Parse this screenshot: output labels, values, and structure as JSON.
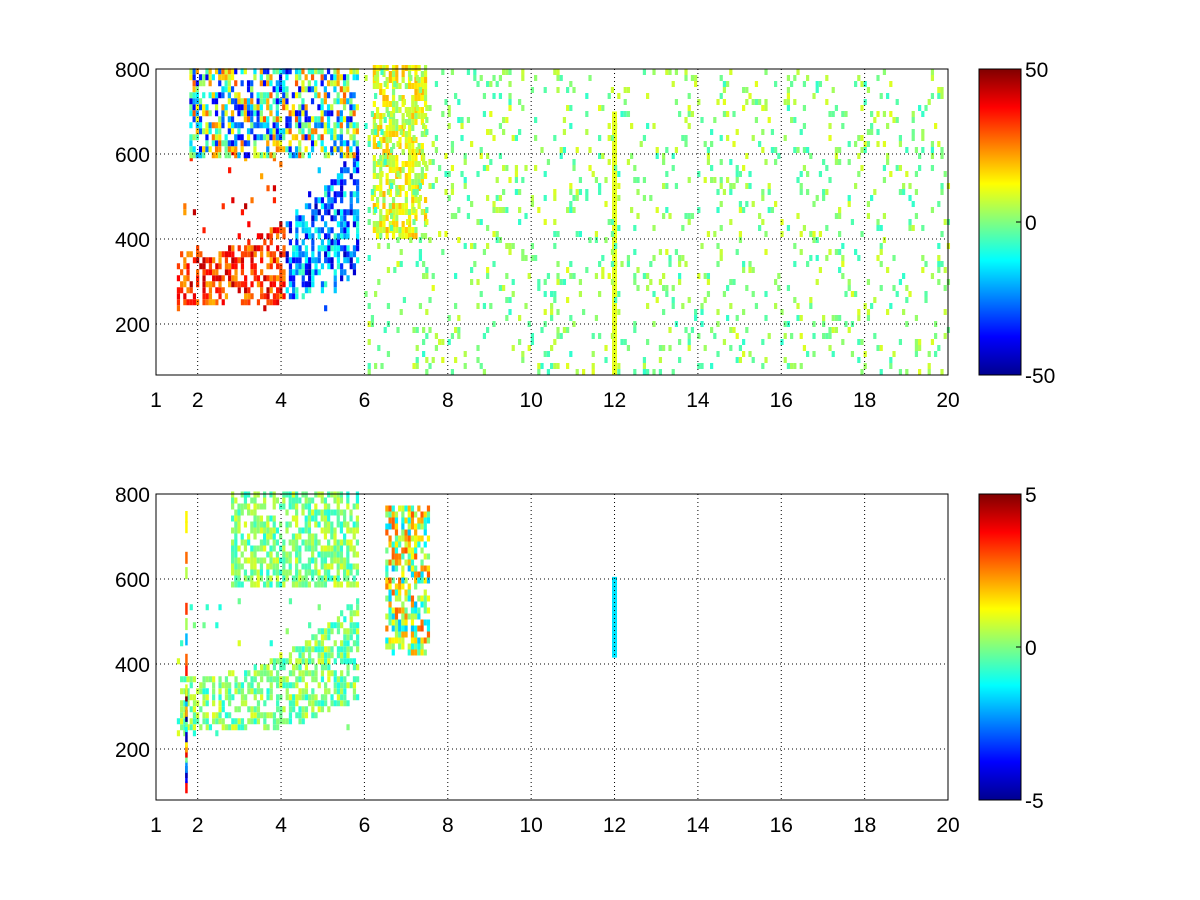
{
  "chart_data": [
    {
      "type": "heatmap",
      "title": "",
      "xlabel": "",
      "ylabel": "",
      "xlim": [
        1,
        20
      ],
      "ylim": [
        80,
        800
      ],
      "x_ticks": [
        1,
        2,
        4,
        6,
        8,
        10,
        12,
        14,
        16,
        18,
        20
      ],
      "y_ticks": [
        200,
        400,
        600,
        800
      ],
      "grid": true,
      "colormap": "jet",
      "colorbar": {
        "range": [
          -50,
          50
        ],
        "ticks": [
          -50,
          0,
          50
        ]
      },
      "features": [
        {
          "name": "lower arc",
          "x_range": [
            1.5,
            5.8
          ],
          "y_range": [
            230,
            600
          ],
          "value_range": [
            -45,
            45
          ]
        },
        {
          "name": "upper band",
          "x_range": [
            1.8,
            5.8
          ],
          "y_range": [
            590,
            800
          ],
          "value_range": [
            -40,
            30
          ]
        },
        {
          "name": "cluster near 6.5-7.5",
          "x_range": [
            6.2,
            7.5
          ],
          "y_range": [
            400,
            800
          ],
          "value_range": [
            0,
            20
          ]
        },
        {
          "name": "line at x=12",
          "x": 12.0,
          "y_range": [
            80,
            700
          ],
          "value": 10
        },
        {
          "name": "scattered noise",
          "x_range": [
            6,
            20
          ],
          "y_range": [
            80,
            800
          ],
          "value_range": [
            -8,
            10
          ]
        }
      ]
    },
    {
      "type": "heatmap",
      "title": "",
      "xlabel": "",
      "ylabel": "",
      "xlim": [
        1,
        20
      ],
      "ylim": [
        80,
        800
      ],
      "x_ticks": [
        1,
        2,
        4,
        6,
        8,
        10,
        12,
        14,
        16,
        18,
        20
      ],
      "y_ticks": [
        200,
        400,
        600,
        800
      ],
      "grid": true,
      "colormap": "jet",
      "colorbar": {
        "range": [
          -5,
          5
        ],
        "ticks": [
          -5,
          0,
          5
        ]
      },
      "features": [
        {
          "name": "lower arc",
          "x_range": [
            1.5,
            5.8
          ],
          "y_range": [
            230,
            550
          ],
          "value_range": [
            -1,
            1
          ]
        },
        {
          "name": "upper band",
          "x_range": [
            2.8,
            5.8
          ],
          "y_range": [
            580,
            800
          ],
          "value_range": [
            -1,
            1
          ]
        },
        {
          "name": "cluster near 6.5-7.5",
          "x_range": [
            6.5,
            7.5
          ],
          "y_range": [
            420,
            760
          ],
          "value_range": [
            -2,
            3
          ]
        },
        {
          "name": "line at x=12",
          "x": 12.0,
          "y_range": [
            415,
            605
          ],
          "value": -1.5
        },
        {
          "name": "spikes near x=1.7",
          "x": 1.7,
          "y_range": [
            100,
            760
          ],
          "value_range": [
            -5,
            5
          ]
        }
      ]
    }
  ]
}
